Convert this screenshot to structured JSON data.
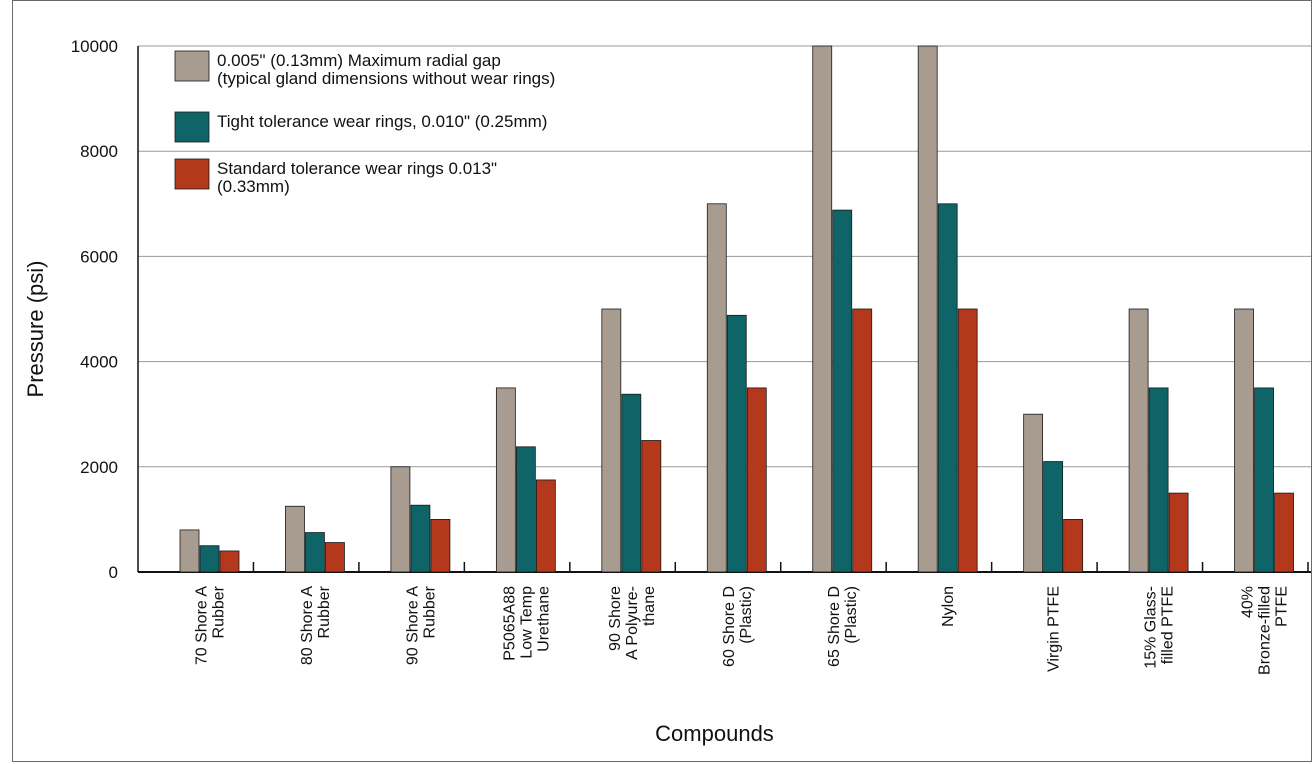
{
  "chart_data": {
    "type": "bar",
    "title": "",
    "xlabel": "Compounds",
    "ylabel": "Pressure (psi)",
    "ylim": [
      0,
      10000
    ],
    "yticks": [
      "0",
      "2000",
      "4000",
      "6000",
      "8000",
      "10000"
    ],
    "grid": "horizontal",
    "legend_position": "top-left",
    "categories": [
      [
        "70 Shore A",
        "Rubber"
      ],
      [
        "80 Shore A",
        "Rubber"
      ],
      [
        "90 Shore A",
        "Rubber"
      ],
      [
        "P5065A88",
        "Low Temp",
        "Urethane"
      ],
      [
        "90 Shore",
        "A Polyure-",
        "thane"
      ],
      [
        "60 Shore D",
        "(Plastic)"
      ],
      [
        "65 Shore D",
        "(Plastic)"
      ],
      [
        "Nylon"
      ],
      [
        "Virgin PTFE"
      ],
      [
        "15% Glass-",
        "filled PTFE"
      ],
      [
        "40%",
        "Bronze-filled",
        "PTFE"
      ]
    ],
    "series": [
      {
        "name": [
          "0.005\" (0.13mm) Maximum radial gap",
          "(typical gland dimensions without wear rings)"
        ],
        "color": "#a89b90",
        "values": [
          800,
          1250,
          2000,
          3500,
          5000,
          7000,
          10000,
          10000,
          3000,
          5000,
          5000
        ]
      },
      {
        "name": [
          "Tight tolerance wear rings, 0.010\" (0.25mm)"
        ],
        "color": "#0e6467",
        "values": [
          500,
          750,
          1270,
          2380,
          3380,
          4880,
          6880,
          7000,
          2100,
          3500,
          3500
        ]
      },
      {
        "name": [
          "Standard tolerance wear rings 0.013\"",
          "(0.33mm)"
        ],
        "color": "#b3381c",
        "values": [
          400,
          560,
          1000,
          1750,
          2500,
          3500,
          5000,
          5000,
          1000,
          1500,
          1500
        ]
      }
    ]
  }
}
